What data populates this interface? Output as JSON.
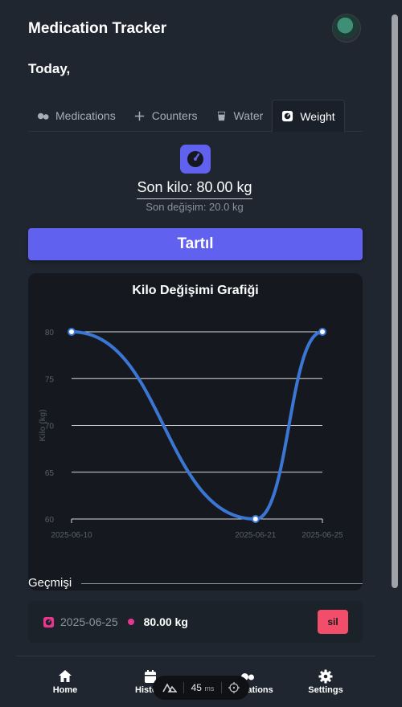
{
  "header": {
    "title": "Medication Tracker",
    "greeting": "Today,"
  },
  "tabs": [
    {
      "label": "Medications",
      "icon": "pills-icon"
    },
    {
      "label": "Counters",
      "icon": "plus-icon"
    },
    {
      "label": "Water",
      "icon": "glass-icon"
    },
    {
      "label": "Weight",
      "icon": "scale-icon",
      "active": true
    }
  ],
  "weight": {
    "last_weight": "Son kilo: 80.00 kg",
    "last_change": "Son değişim: 20.0 kg",
    "weigh_button": "Tartıl"
  },
  "chart_data": {
    "type": "line",
    "title": "Kilo Değişimi Grafiği",
    "ylabel": "Kilo (kg)",
    "xlabel": "",
    "x": [
      "2025-06-10",
      "2025-06-21",
      "2025-06-25"
    ],
    "values": [
      80,
      60,
      80
    ],
    "ylim": [
      60,
      80
    ],
    "yticks": [
      60,
      65,
      70,
      75,
      80
    ],
    "grid": true,
    "line_color": "#3b76d4"
  },
  "history": {
    "label": "Geçmişi",
    "entries": [
      {
        "date": "2025-06-25",
        "value": "80.00 kg",
        "delete_label": "sil"
      }
    ]
  },
  "nav": {
    "items": [
      {
        "label": "Home",
        "icon": "home-icon"
      },
      {
        "label": "History",
        "icon": "calendar-icon"
      },
      {
        "label": "Medications",
        "icon": "pills-icon"
      },
      {
        "label": "Settings",
        "icon": "gear-icon"
      }
    ]
  },
  "devtools": {
    "time": "45",
    "unit": "ms"
  },
  "colors": {
    "accent": "#6161f0",
    "danger": "#f24d6b",
    "pink": "#e8368f"
  }
}
